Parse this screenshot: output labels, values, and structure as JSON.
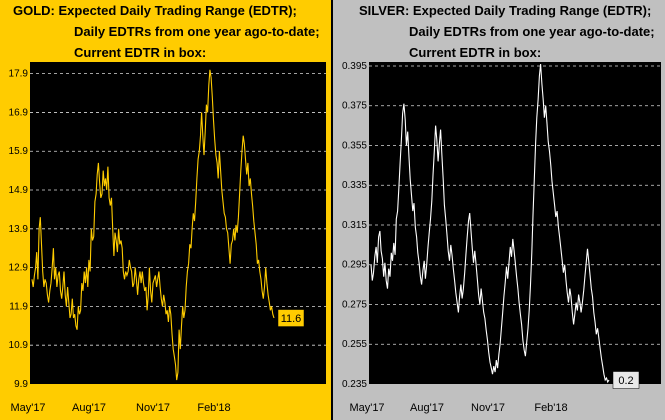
{
  "chart_data": [
    {
      "type": "line",
      "title": [
        "GOLD:  Expected Daily Trading Range (EDTR);",
        "Daily EDTRs from one year ago-to-date;",
        "Current EDTR in box:"
      ],
      "background": "#ffcc00",
      "plot_background": "#000000",
      "line_color": "#ffcc00",
      "ylim": [
        9.9,
        18.2
      ],
      "yticks": [
        "17.9",
        "16.9",
        "15.9",
        "14.9",
        "13.9",
        "12.9",
        "11.9",
        "10.9",
        "9.9"
      ],
      "xticks": [
        "May'17",
        "Aug'17",
        "Nov'17",
        "Feb'18"
      ],
      "current_value": "11.6",
      "grid": true,
      "series": [
        {
          "values": [
            12.6,
            12.4,
            12.7,
            12.9,
            13.3,
            12.6,
            13.9,
            14.2,
            13.5,
            12.8,
            12.4,
            12.6,
            12.5,
            12.2,
            12.0,
            12.3,
            12.5,
            12.9,
            13.4,
            12.6,
            12.9,
            12.4,
            12.7,
            12.8,
            12.3,
            12.1,
            12.4,
            12.8,
            12.2,
            11.9,
            12.4,
            12.0,
            11.6,
            11.7,
            12.1,
            11.6,
            11.7,
            11.4,
            11.3,
            11.9,
            11.7,
            11.8,
            12.5,
            12.3,
            12.8,
            12.5,
            12.9,
            12.4,
            13.1,
            12.8,
            13.9,
            13.6,
            13.7,
            14.6,
            14.8,
            15.3,
            15.6,
            15.1,
            14.7,
            14.8,
            15.4,
            15.0,
            15.2,
            14.9,
            15.5,
            14.7,
            14.5,
            14.7,
            13.9,
            13.2,
            13.8,
            13.6,
            13.3,
            13.9,
            13.5,
            13.6,
            13.4,
            12.8,
            12.6,
            12.8,
            12.7,
            12.8,
            13.1,
            12.9,
            12.8,
            12.4,
            12.5,
            12.9,
            12.6,
            12.2,
            12.6,
            12.8,
            12.5,
            12.8,
            12.5,
            12.3,
            12.4,
            11.8,
            12.2,
            12.9,
            12.3,
            12.0,
            12.5,
            12.6,
            12.7,
            12.4,
            12.6,
            12.8,
            12.4,
            12.1,
            11.9,
            12.2,
            12.0,
            11.7,
            11.8,
            11.5,
            11.9,
            11.7,
            11.2,
            10.8,
            10.6,
            10.4,
            10.0,
            10.2,
            11.3,
            10.8,
            11.4,
            11.9,
            11.6,
            11.8,
            12.4,
            12.8,
            13.0,
            13.5,
            13.4,
            13.9,
            14.3,
            14.1,
            14.6,
            15.2,
            15.7,
            15.9,
            16.3,
            16.9,
            16.3,
            15.8,
            16.4,
            17.1,
            16.9,
            17.6,
            18.0,
            17.8,
            17.3,
            16.7,
            16.2,
            15.8,
            15.6,
            15.2,
            15.9,
            15.4,
            14.9,
            14.6,
            14.3,
            14.2,
            13.9,
            13.8,
            13.4,
            13.0,
            13.5,
            13.6,
            13.9,
            13.6,
            14.0,
            13.8,
            14.2,
            14.8,
            15.4,
            15.9,
            16.3,
            16.1,
            15.7,
            15.3,
            15.6,
            15.0,
            15.2,
            14.8,
            14.5,
            14.1,
            13.8,
            13.5,
            13.0,
            13.1,
            12.8,
            12.6,
            12.3,
            12.1,
            12.4,
            12.9,
            12.5,
            12.2,
            12.0,
            11.8,
            11.9,
            11.7,
            11.6
          ]
        }
      ]
    },
    {
      "type": "line",
      "title": [
        "SILVER:  Expected Daily Trading Range (EDTR);",
        "Daily EDTRs from one year ago-to-date;",
        "Current EDTR in box:"
      ],
      "background": "#c0c0c0",
      "plot_background": "#000000",
      "line_color": "#ffffff",
      "ylim": [
        0.235,
        0.397
      ],
      "yticks": [
        "0.395",
        "0.375",
        "0.355",
        "0.335",
        "0.315",
        "0.295",
        "0.275",
        "0.255",
        "0.235"
      ],
      "xticks": [
        "May'17",
        "Aug'17",
        "Nov'17",
        "Feb'18"
      ],
      "current_value": "0.2",
      "grid": true,
      "series": [
        {
          "values": [
            0.295,
            0.287,
            0.291,
            0.299,
            0.304,
            0.296,
            0.309,
            0.312,
            0.302,
            0.298,
            0.289,
            0.296,
            0.287,
            0.283,
            0.293,
            0.289,
            0.301,
            0.297,
            0.306,
            0.3,
            0.318,
            0.322,
            0.334,
            0.346,
            0.358,
            0.371,
            0.376,
            0.368,
            0.355,
            0.362,
            0.349,
            0.338,
            0.33,
            0.322,
            0.326,
            0.314,
            0.309,
            0.301,
            0.296,
            0.289,
            0.285,
            0.292,
            0.297,
            0.288,
            0.295,
            0.304,
            0.311,
            0.318,
            0.327,
            0.34,
            0.352,
            0.365,
            0.358,
            0.347,
            0.356,
            0.363,
            0.35,
            0.338,
            0.325,
            0.318,
            0.31,
            0.302,
            0.297,
            0.305,
            0.3,
            0.293,
            0.287,
            0.281,
            0.276,
            0.271,
            0.279,
            0.285,
            0.278,
            0.283,
            0.291,
            0.3,
            0.309,
            0.317,
            0.321,
            0.312,
            0.303,
            0.296,
            0.302,
            0.295,
            0.288,
            0.28,
            0.275,
            0.283,
            0.277,
            0.271,
            0.268,
            0.262,
            0.257,
            0.251,
            0.246,
            0.243,
            0.24,
            0.244,
            0.241,
            0.247,
            0.243,
            0.25,
            0.255,
            0.263,
            0.271,
            0.279,
            0.286,
            0.294,
            0.288,
            0.296,
            0.304,
            0.299,
            0.308,
            0.302,
            0.296,
            0.289,
            0.283,
            0.276,
            0.27,
            0.265,
            0.257,
            0.252,
            0.249,
            0.256,
            0.263,
            0.272,
            0.285,
            0.301,
            0.32,
            0.338,
            0.356,
            0.369,
            0.378,
            0.39,
            0.396,
            0.386,
            0.378,
            0.369,
            0.375,
            0.366,
            0.357,
            0.352,
            0.345,
            0.337,
            0.331,
            0.325,
            0.319,
            0.322,
            0.314,
            0.309,
            0.303,
            0.297,
            0.291,
            0.295,
            0.287,
            0.281,
            0.276,
            0.283,
            0.279,
            0.271,
            0.265,
            0.27,
            0.276,
            0.272,
            0.28,
            0.276,
            0.271,
            0.276,
            0.282,
            0.289,
            0.296,
            0.303,
            0.297,
            0.29,
            0.283,
            0.279,
            0.271,
            0.266,
            0.26,
            0.263,
            0.258,
            0.253,
            0.248,
            0.244,
            0.24,
            0.237,
            0.238,
            0.236,
            0.237
          ]
        }
      ]
    }
  ]
}
